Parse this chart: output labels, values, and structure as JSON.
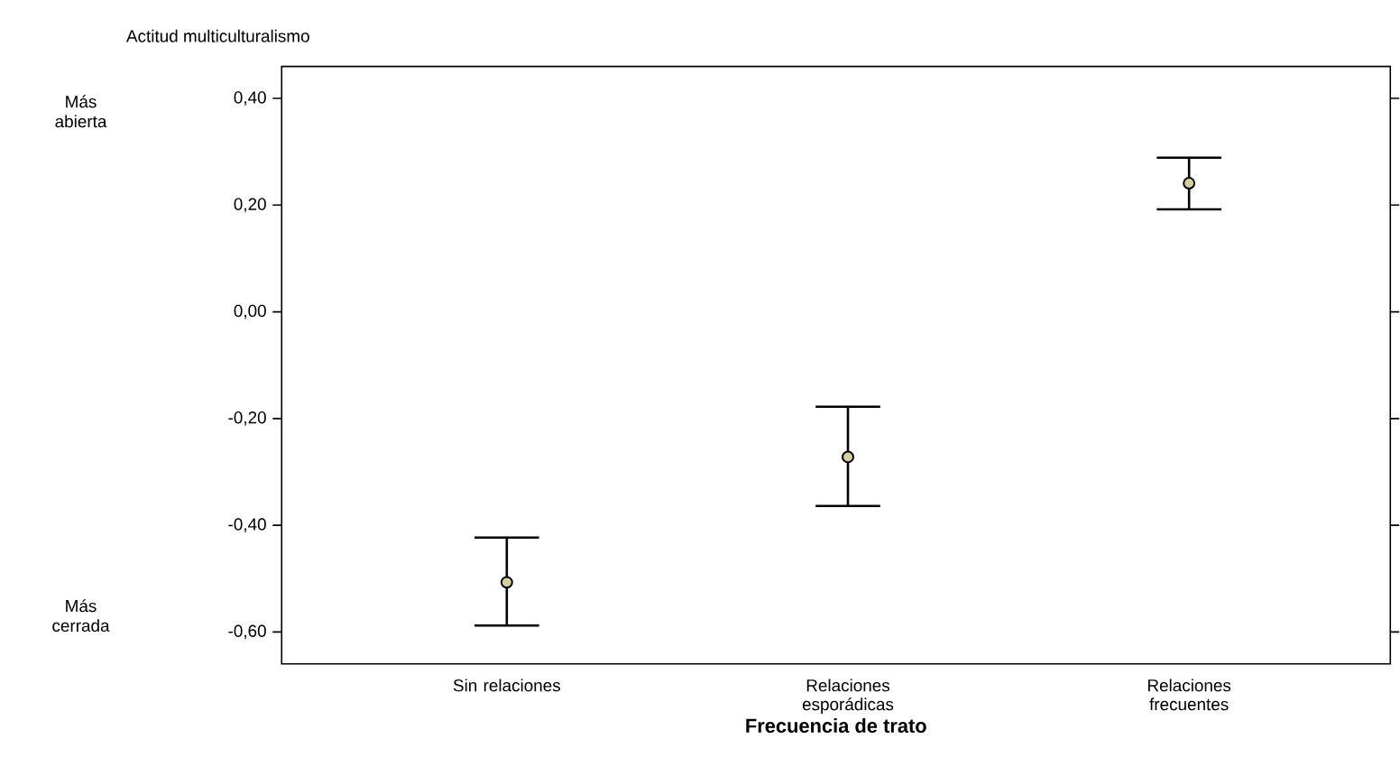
{
  "chart_data": {
    "type": "scatter",
    "title": "Actitud multiculturalismo",
    "xlabel": "Frecuencia de trato",
    "categories": [
      "Sin relaciones",
      "Relaciones esporádicas",
      "Relaciones frecuentes"
    ],
    "values": [
      -0.507,
      -0.272,
      0.241
    ],
    "errors": [
      [
        -0.588,
        -0.423
      ],
      [
        -0.364,
        -0.178
      ],
      [
        0.192,
        0.289
      ]
    ],
    "color": "#d6cf9a",
    "marker": "circle",
    "grid": false,
    "ylim": [
      -0.66,
      0.46
    ],
    "yticks": [
      {
        "value": -0.6,
        "label": "-0,60"
      },
      {
        "value": -0.4,
        "label": "-0,40"
      },
      {
        "value": -0.2,
        "label": "-0,20"
      },
      {
        "value": 0,
        "label": "0,00"
      },
      {
        "value": 0.2,
        "label": "0,20"
      },
      {
        "value": 0.4,
        "label": "0,40"
      }
    ],
    "annotations": [
      "Más abierta",
      "Más cerrada"
    ]
  }
}
